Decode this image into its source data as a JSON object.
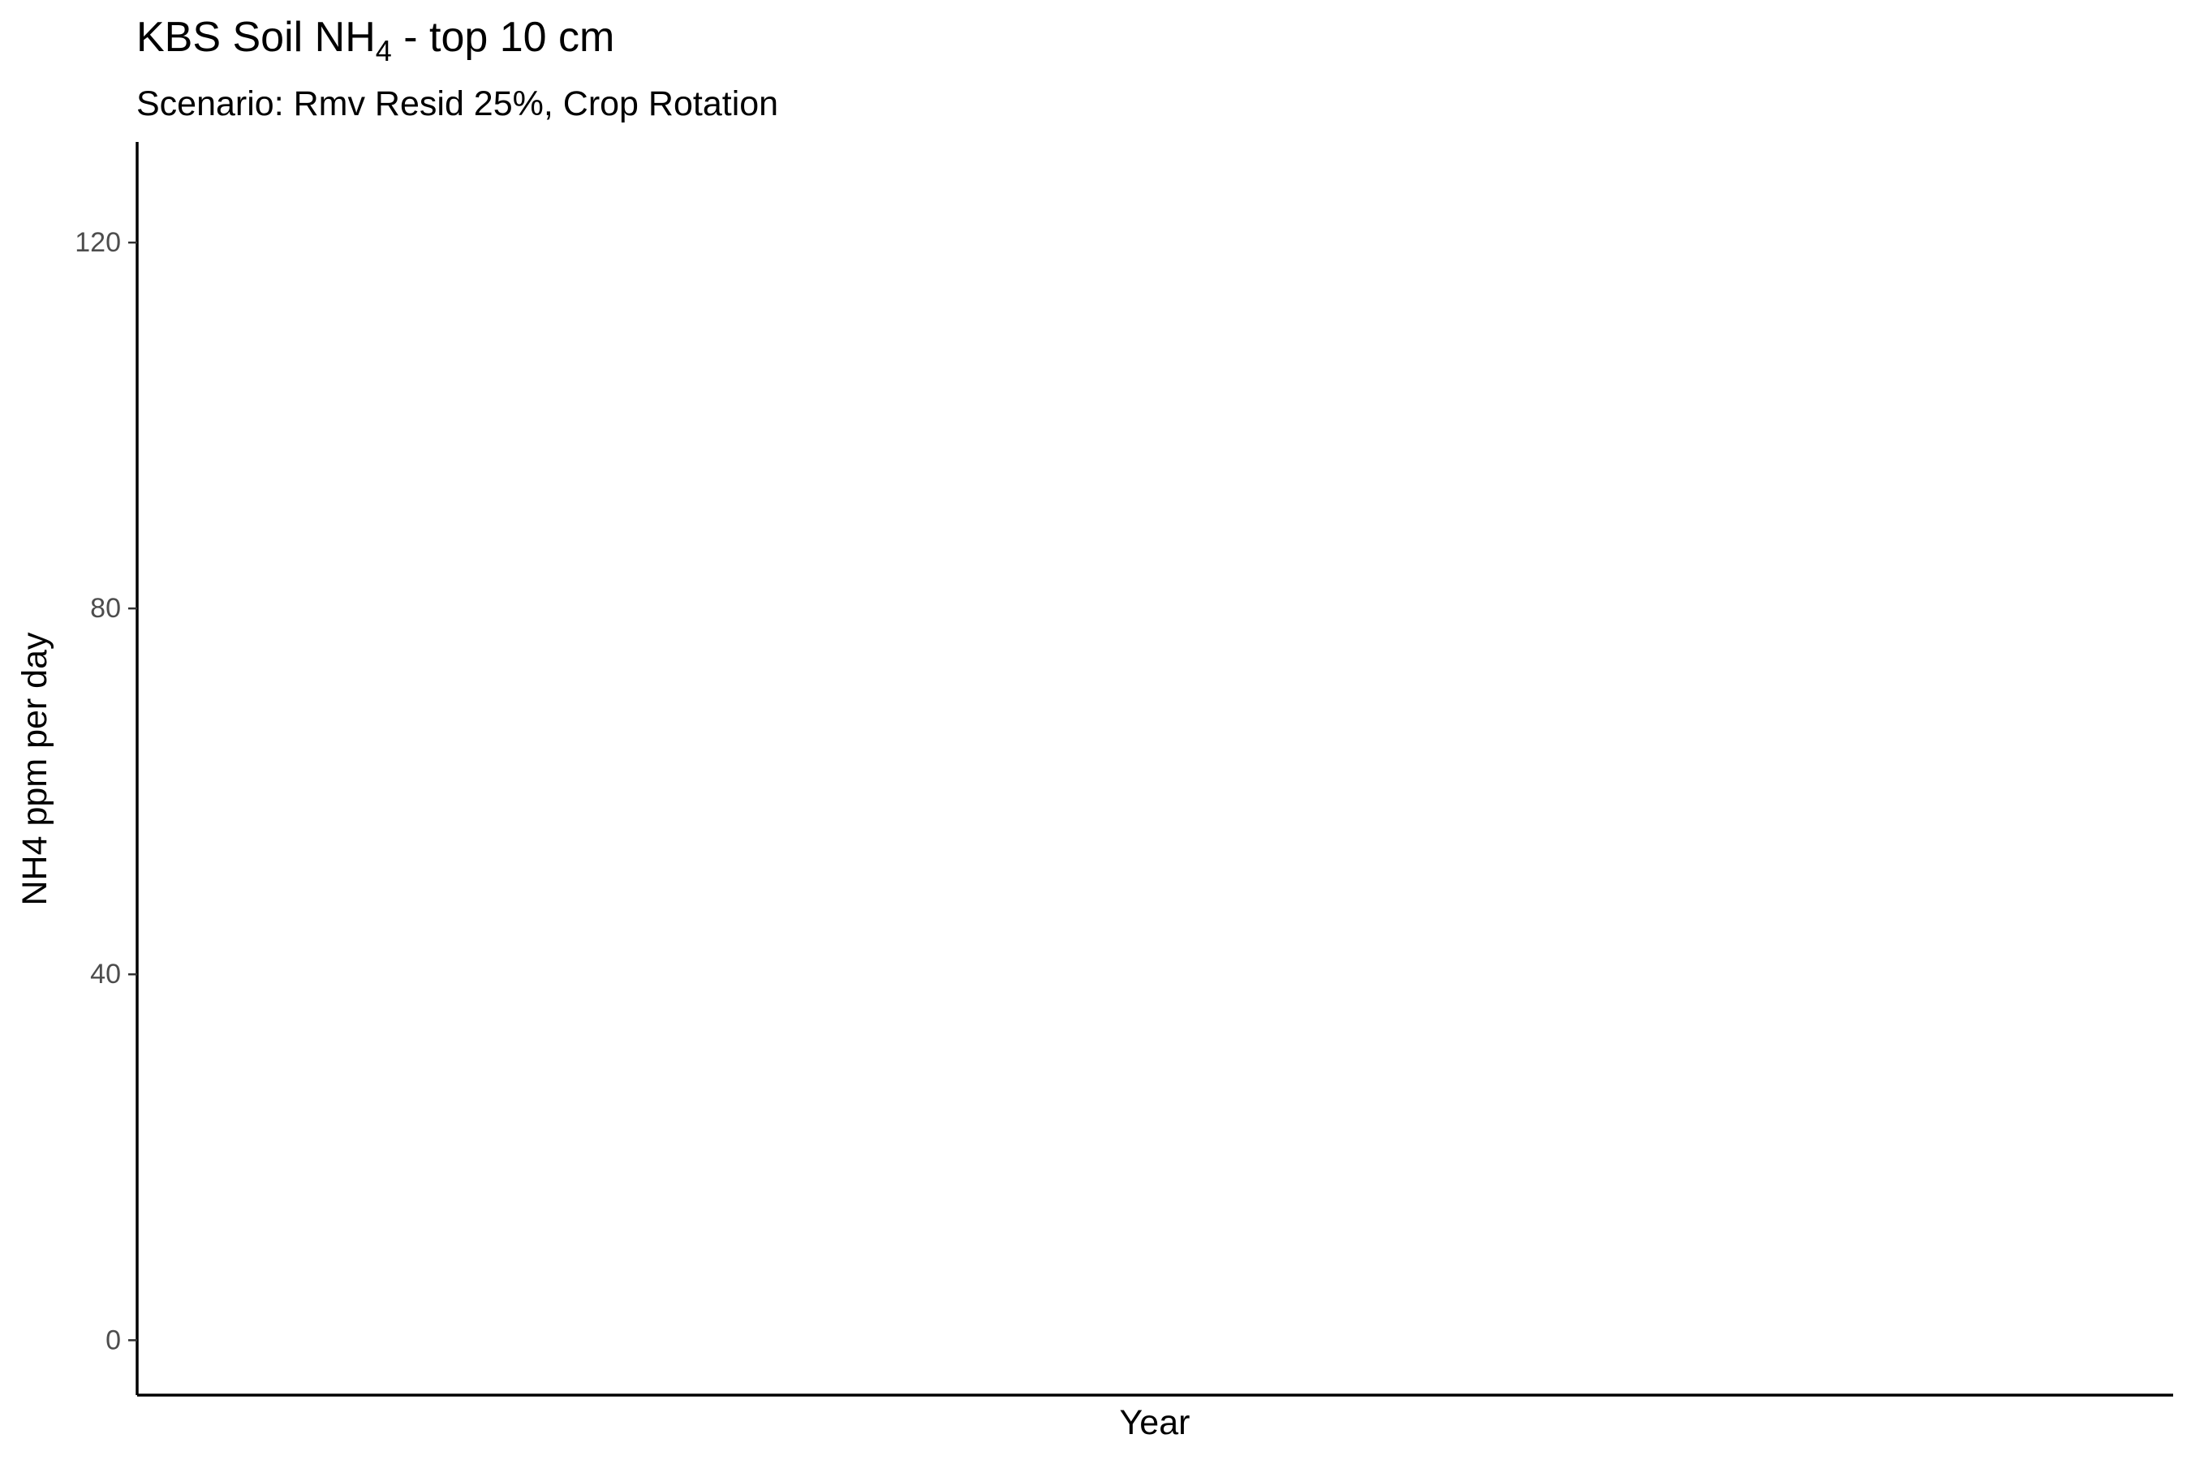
{
  "chart_data": {
    "type": "line",
    "title_main": "KBS Soil NH",
    "title_sub": "4",
    "title_rest": " - top 10 cm",
    "subtitle": "Scenario: Rmv Resid 25%, Crop Rotation",
    "xlabel": "Year",
    "ylabel": "NH4 ppm per day",
    "ylim": [
      -6,
      131
    ],
    "y_ticks": [
      0,
      40,
      80,
      120
    ],
    "y_tick_labels": [
      "0",
      "40",
      "80",
      "120"
    ],
    "x_ticks": [],
    "series": [],
    "grid": false,
    "legend": "none"
  }
}
